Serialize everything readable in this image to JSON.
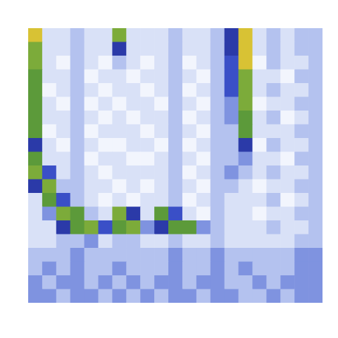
{
  "chart_data": {
    "type": "heatmap",
    "xlim": [
      0,
      21
    ],
    "ylim": [
      20,
      0
    ],
    "zlim": [
      0,
      10
    ],
    "tick_labels": false,
    "cells": [
      [
        9,
        2,
        2,
        3,
        2,
        2,
        8,
        2,
        2,
        2,
        3,
        2,
        2,
        3,
        6,
        9,
        2,
        3,
        2,
        3,
        3
      ],
      [
        8,
        2,
        2,
        3,
        2,
        2,
        6,
        2,
        2,
        2,
        3,
        2,
        2,
        3,
        6,
        9,
        2,
        3,
        2,
        3,
        3
      ],
      [
        8,
        2,
        1,
        3,
        2,
        1,
        3,
        2,
        1,
        2,
        3,
        1,
        2,
        3,
        5,
        9,
        1,
        3,
        2,
        2,
        3
      ],
      [
        7,
        2,
        2,
        3,
        1,
        2,
        2,
        1,
        2,
        2,
        3,
        2,
        1,
        3,
        5,
        8,
        2,
        2,
        1,
        3,
        3
      ],
      [
        7,
        1,
        2,
        3,
        2,
        1,
        2,
        2,
        1,
        2,
        3,
        1,
        2,
        3,
        5,
        8,
        2,
        3,
        2,
        2,
        3
      ],
      [
        7,
        2,
        1,
        3,
        1,
        2,
        1,
        2,
        2,
        1,
        3,
        2,
        1,
        3,
        4,
        8,
        1,
        2,
        2,
        3,
        3
      ],
      [
        7,
        2,
        2,
        3,
        2,
        1,
        2,
        1,
        2,
        2,
        3,
        1,
        2,
        3,
        4,
        7,
        2,
        3,
        1,
        2,
        3
      ],
      [
        7,
        1,
        2,
        3,
        1,
        2,
        2,
        2,
        1,
        2,
        3,
        2,
        1,
        3,
        3,
        7,
        2,
        2,
        2,
        3,
        3
      ],
      [
        6,
        2,
        1,
        3,
        2,
        1,
        1,
        2,
        2,
        1,
        3,
        1,
        2,
        3,
        3,
        6,
        1,
        3,
        2,
        2,
        3
      ],
      [
        7,
        2,
        2,
        3,
        1,
        2,
        2,
        1,
        1,
        2,
        3,
        2,
        1,
        3,
        3,
        4,
        2,
        2,
        1,
        3,
        3
      ],
      [
        8,
        5,
        2,
        3,
        2,
        1,
        2,
        2,
        2,
        2,
        3,
        1,
        2,
        3,
        4,
        3,
        2,
        3,
        2,
        2,
        3
      ],
      [
        6,
        8,
        3,
        3,
        2,
        2,
        1,
        2,
        1,
        2,
        3,
        2,
        1,
        3,
        3,
        2,
        1,
        2,
        2,
        3,
        3
      ],
      [
        2,
        7,
        5,
        3,
        2,
        1,
        2,
        1,
        2,
        2,
        3,
        1,
        2,
        3,
        2,
        2,
        2,
        3,
        1,
        2,
        3
      ],
      [
        2,
        4,
        8,
        7,
        3,
        2,
        8,
        6,
        2,
        7,
        5,
        2,
        1,
        3,
        2,
        2,
        1,
        2,
        2,
        3,
        3
      ],
      [
        2,
        2,
        6,
        7,
        8,
        5,
        7,
        8,
        4,
        6,
        7,
        7,
        4,
        3,
        2,
        2,
        2,
        3,
        2,
        2,
        3
      ],
      [
        2,
        2,
        3,
        3,
        4,
        2,
        3,
        3,
        2,
        2,
        3,
        2,
        2,
        3,
        2,
        2,
        2,
        2,
        2,
        3,
        3
      ],
      [
        3,
        3,
        3,
        4,
        3,
        3,
        3,
        3,
        3,
        3,
        4,
        3,
        3,
        4,
        3,
        3,
        3,
        3,
        3,
        4,
        4
      ],
      [
        3,
        4,
        3,
        4,
        3,
        3,
        4,
        3,
        3,
        3,
        4,
        3,
        3,
        4,
        3,
        4,
        3,
        3,
        3,
        4,
        4
      ],
      [
        4,
        3,
        4,
        4,
        3,
        4,
        3,
        4,
        3,
        4,
        4,
        3,
        4,
        4,
        3,
        3,
        4,
        3,
        4,
        4,
        4
      ],
      [
        4,
        4,
        3,
        4,
        4,
        3,
        4,
        3,
        4,
        3,
        4,
        4,
        3,
        4,
        4,
        3,
        3,
        4,
        3,
        4,
        4
      ]
    ]
  }
}
